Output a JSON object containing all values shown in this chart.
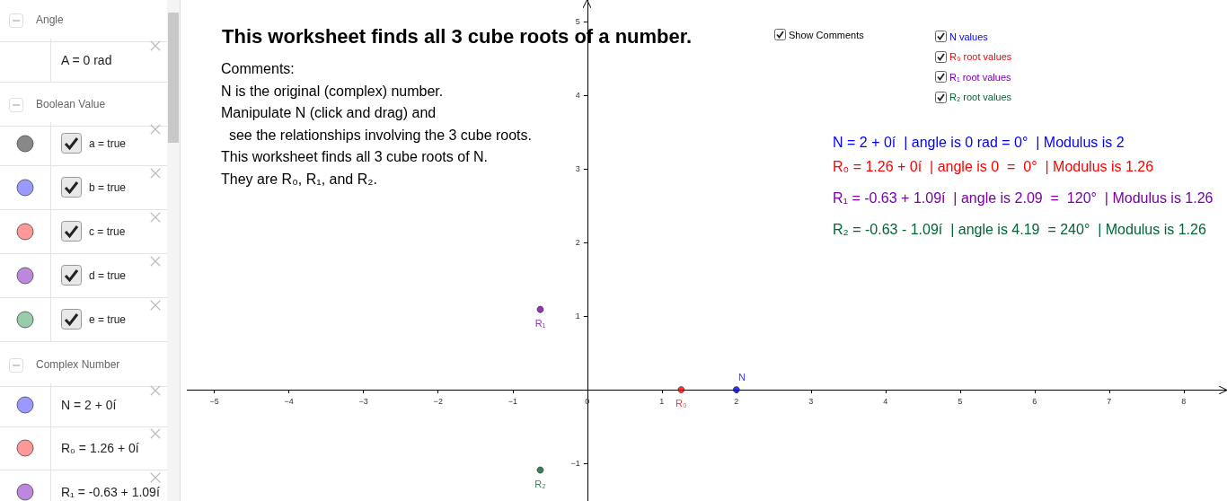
{
  "chart_data": {
    "type": "scatter",
    "title": "This worksheet finds all 3 cube roots of a number.",
    "xlim": [
      -5.37,
      8.58
    ],
    "ylim": [
      -1.51,
      5.29
    ],
    "xticks": [
      -5,
      -4,
      -3,
      -2,
      -1,
      0,
      1,
      2,
      3,
      4,
      5,
      6,
      7,
      8
    ],
    "yticks": [
      -1,
      1,
      2,
      3,
      4,
      5
    ],
    "grid": false,
    "legend": false,
    "marker": "circle",
    "series": [
      {
        "name": "N",
        "color": "#0000ff",
        "x": [
          2
        ],
        "values": [
          0
        ]
      },
      {
        "name": "R₀",
        "color": "#ff0000",
        "x": [
          1.26
        ],
        "values": [
          0
        ]
      },
      {
        "name": "R₁",
        "color": "#7a00a8",
        "x": [
          -0.63
        ],
        "values": [
          1.09
        ]
      },
      {
        "name": "R₂",
        "color": "#006633",
        "x": [
          -0.63
        ],
        "values": [
          -1.09
        ]
      }
    ],
    "annotations": [
      "Comments:",
      "N is the original (complex) number.",
      "Manipulate N (click and drag) and",
      "  see the relationships involving the 3 cube roots.",
      "This worksheet finds all 3 cube roots of N.",
      "They are R₀, R₁, and R₂.",
      "N = 2 + 0í  | angle is 0 rad = 0°  | Modulus is 2",
      "R₀ = 1.26 + 0í  | angle is 0  =  0°  | Modulus is 1.26",
      "R₁ = -0.63 + 1.09í  | angle is 2.09  =  120°  | Modulus is 1.26",
      "R₂ = -0.63 - 1.09í  | angle is 4.19  = 240°  | Modulus is 1.26",
      "Show Comments",
      "N values",
      "R₀ root values",
      "R₁ root values",
      "R₂ root values",
      "Angle",
      "A = 0 rad",
      "Boolean Value",
      "a = true",
      "b = true",
      "c = true",
      "d = true",
      "e = true",
      "Complex Number",
      "N = 2 + 0í",
      "R₀ = 1.26 + 0í",
      "R₁ = -0.63 + 1.09í"
    ]
  }
}
